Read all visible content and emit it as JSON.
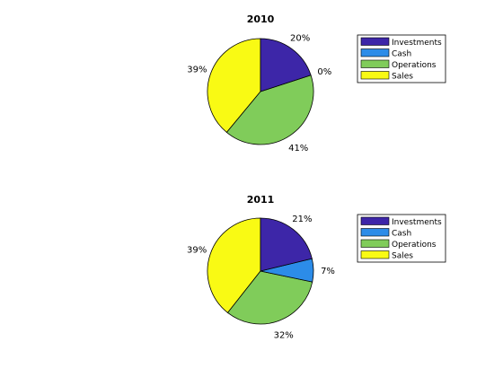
{
  "chart_data": [
    {
      "type": "pie",
      "title": "2010",
      "categories": [
        "Investments",
        "Cash",
        "Operations",
        "Sales"
      ],
      "values": [
        20,
        0,
        41,
        39
      ],
      "labels": [
        "20%",
        "0%",
        "41%",
        "39%"
      ],
      "colors": [
        "#3d26a8",
        "#2c8ce8",
        "#80cc5a",
        "#f9fa14"
      ],
      "legend": {
        "position": "top-right",
        "entries": [
          "Investments",
          "Cash",
          "Operations",
          "Sales"
        ]
      }
    },
    {
      "type": "pie",
      "title": "2011",
      "categories": [
        "Investments",
        "Cash",
        "Operations",
        "Sales"
      ],
      "values": [
        21,
        7,
        32,
        39
      ],
      "labels": [
        "21%",
        "7%",
        "32%",
        "39%"
      ],
      "colors": [
        "#3d26a8",
        "#2c8ce8",
        "#80cc5a",
        "#f9fa14"
      ],
      "legend": {
        "position": "top-right",
        "entries": [
          "Investments",
          "Cash",
          "Operations",
          "Sales"
        ]
      }
    }
  ]
}
